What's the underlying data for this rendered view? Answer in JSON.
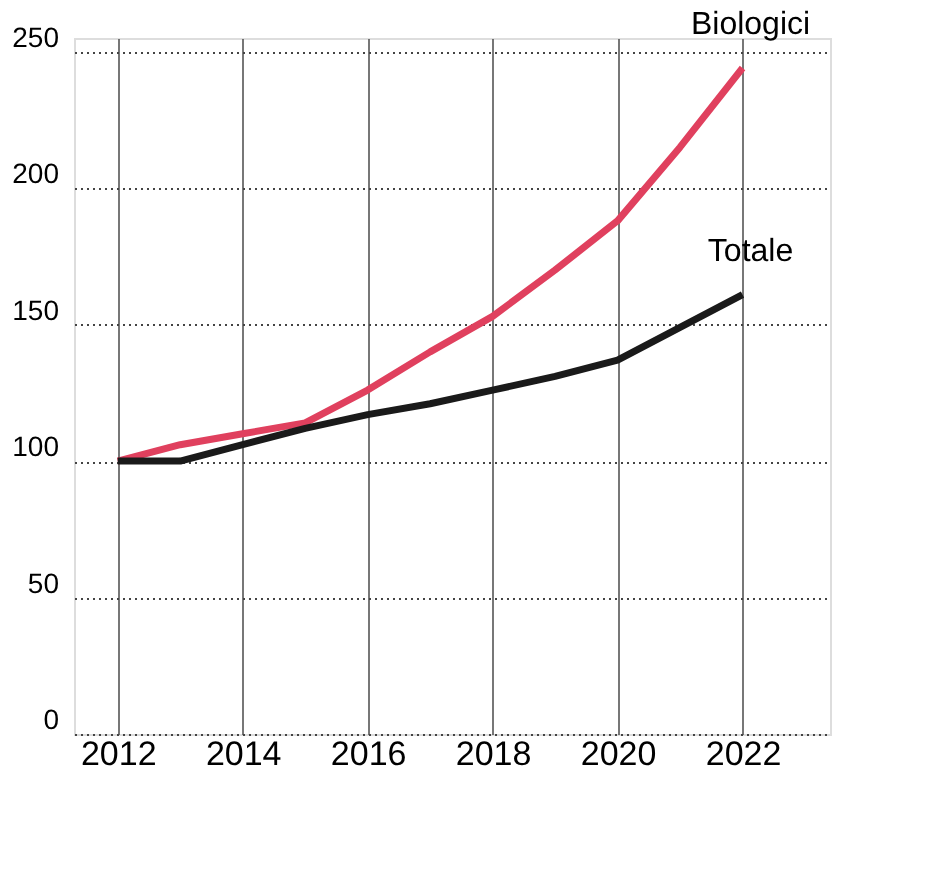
{
  "chart_data": {
    "type": "line",
    "x": [
      2012,
      2013,
      2014,
      2015,
      2016,
      2017,
      2018,
      2019,
      2020,
      2021,
      2022
    ],
    "series": [
      {
        "name": "Biologici",
        "color": "#e0405e",
        "values": [
          100,
          106,
          110,
          114,
          126,
          140,
          153,
          170,
          188,
          215,
          244
        ]
      },
      {
        "name": "Totale",
        "color": "#1a1a1a",
        "values": [
          100,
          100,
          106,
          112,
          117,
          121,
          126,
          131,
          137,
          149,
          161
        ]
      }
    ],
    "xlim": [
      2011.3,
      2023.4
    ],
    "xticks": [
      2012,
      2014,
      2016,
      2018,
      2020,
      2022
    ],
    "ylim": [
      0,
      255
    ],
    "yticks": [
      0,
      50,
      100,
      150,
      200,
      250
    ],
    "grid": true,
    "legend": false,
    "marker": "none",
    "line_style": "solid"
  }
}
